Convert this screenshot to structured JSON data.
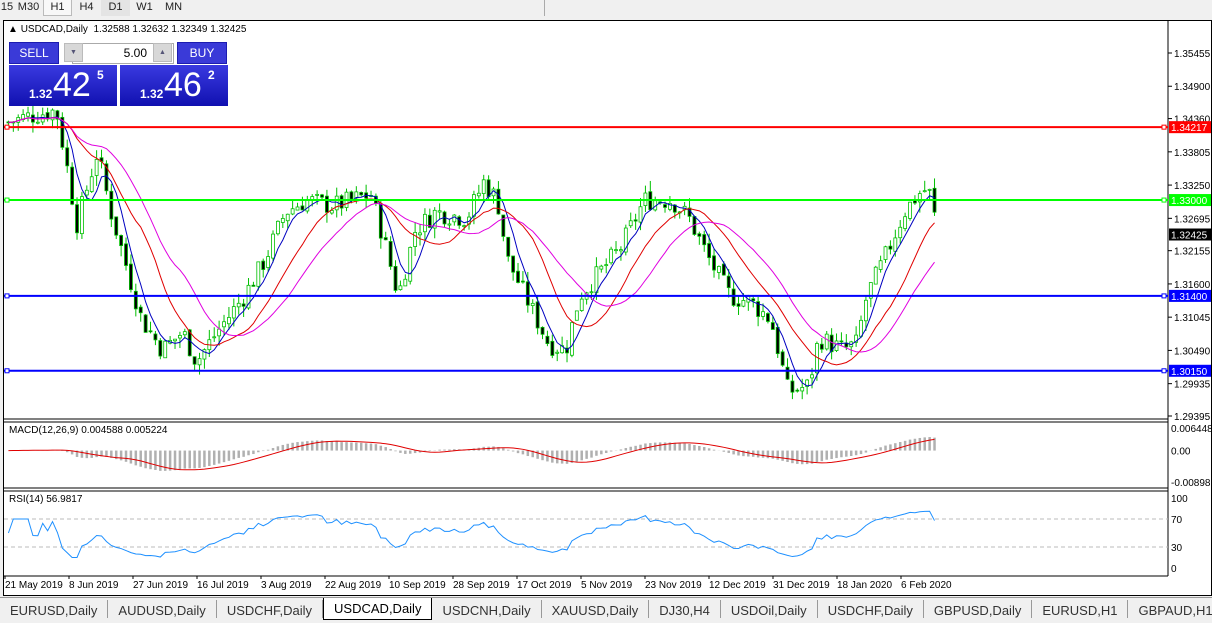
{
  "timeframes": [
    "15",
    "M30",
    "H1",
    "H4",
    "D1",
    "W1",
    "MN"
  ],
  "selected_timeframe": "H1",
  "chart_header": {
    "symbol": "USDCAD,Daily",
    "ohlc": "1.32588 1.32632 1.32349 1.32425"
  },
  "one_click": {
    "sell_label": "SELL",
    "buy_label": "BUY",
    "lot": "5.00",
    "sell": {
      "big": "1.32",
      "main": "42",
      "frac": "5"
    },
    "buy": {
      "big": "1.32",
      "main": "46",
      "frac": "2"
    }
  },
  "chart_data": {
    "type": "candlestick",
    "price_axis_ticks": [
      "1.35455",
      "1.34900",
      "1.34360",
      "1.33805",
      "1.33250",
      "1.32695",
      "1.32155",
      "1.31600",
      "1.31045",
      "1.30490",
      "1.29935",
      "1.29395"
    ],
    "ylim": [
      1.29395,
      1.35455
    ],
    "current_price": "1.32425",
    "hlines": [
      {
        "price": "1.34217",
        "color": "#ff0000"
      },
      {
        "price": "1.33000",
        "color": "#00ff00"
      },
      {
        "price": "1.31400",
        "color": "#0000ff"
      },
      {
        "price": "1.30150",
        "color": "#0000ff"
      }
    ],
    "date_ticks": [
      "21 May 2019",
      "8 Jun 2019",
      "27 Jun 2019",
      "16 Jul 2019",
      "3 Aug 2019",
      "22 Aug 2019",
      "10 Sep 2019",
      "28 Sep 2019",
      "17 Oct 2019",
      "5 Nov 2019",
      "23 Nov 2019",
      "12 Dec 2019",
      "31 Dec 2019",
      "18 Jan 2020",
      "6 Feb 2020"
    ],
    "close_path": [
      [
        "2019-05-22",
        1.343
      ],
      [
        "2019-05-28",
        1.344
      ],
      [
        "2019-06-05",
        1.345
      ],
      [
        "2019-06-08",
        1.336
      ],
      [
        "2019-06-11",
        1.326
      ],
      [
        "2019-06-17",
        1.338
      ],
      [
        "2019-06-21",
        1.328
      ],
      [
        "2019-06-26",
        1.318
      ],
      [
        "2019-06-30",
        1.31
      ],
      [
        "2019-07-06",
        1.305
      ],
      [
        "2019-07-12",
        1.308
      ],
      [
        "2019-07-16",
        1.303
      ],
      [
        "2019-07-22",
        1.308
      ],
      [
        "2019-07-30",
        1.314
      ],
      [
        "2019-08-05",
        1.32
      ],
      [
        "2019-08-11",
        1.328
      ],
      [
        "2019-08-17",
        1.33
      ],
      [
        "2019-08-25",
        1.329
      ],
      [
        "2019-09-05",
        1.331
      ],
      [
        "2019-09-09",
        1.323
      ],
      [
        "2019-09-13",
        1.314
      ],
      [
        "2019-09-18",
        1.325
      ],
      [
        "2019-09-24",
        1.328
      ],
      [
        "2019-10-03",
        1.327
      ],
      [
        "2019-10-08",
        1.333
      ],
      [
        "2019-10-12",
        1.33
      ],
      [
        "2019-10-15",
        1.32
      ],
      [
        "2019-10-21",
        1.313
      ],
      [
        "2019-10-27",
        1.306
      ],
      [
        "2019-11-01",
        1.305
      ],
      [
        "2019-11-05",
        1.314
      ],
      [
        "2019-11-11",
        1.318
      ],
      [
        "2019-11-17",
        1.322
      ],
      [
        "2019-11-24",
        1.33
      ],
      [
        "2019-12-02",
        1.33
      ],
      [
        "2019-12-07",
        1.327
      ],
      [
        "2019-12-13",
        1.32
      ],
      [
        "2019-12-19",
        1.314
      ],
      [
        "2019-12-25",
        1.313
      ],
      [
        "2019-12-31",
        1.31
      ],
      [
        "2020-01-05",
        1.298
      ],
      [
        "2020-01-11",
        1.299
      ],
      [
        "2020-01-14",
        1.307
      ],
      [
        "2020-01-21",
        1.305
      ],
      [
        "2020-01-25",
        1.306
      ],
      [
        "2020-01-28",
        1.314
      ],
      [
        "2020-02-02",
        1.32
      ],
      [
        "2020-02-08",
        1.328
      ],
      [
        "2020-02-12",
        1.331
      ],
      [
        "2020-02-15",
        1.332
      ],
      [
        "2020-02-18",
        1.32425
      ]
    ],
    "colors": {
      "bull": "#00c000",
      "bear": "#00c000",
      "ma_fast": "#0000c0",
      "ma_mid": "#e00000",
      "ma_slow": "#e000e0",
      "macd_hist": "#b0b0b0",
      "macd_signal": "#e00000",
      "rsi": "#1e90ff"
    },
    "macd": {
      "label": "MACD(12,26,9) 0.004588 0.005224",
      "ticks": [
        "0.006448",
        "0.00",
        "-0.008982"
      ]
    },
    "rsi": {
      "label": "RSI(14) 56.9817",
      "ticks": [
        "100",
        "70",
        "30",
        "0"
      ],
      "levels": [
        70,
        30
      ]
    }
  },
  "tabs": [
    "EURUSD,Daily",
    "AUDUSD,Daily",
    "USDCHF,Daily",
    "USDCAD,Daily",
    "USDCNH,Daily",
    "XAUUSD,Daily",
    "DJ30,H4",
    "USDOil,Daily",
    "USDCHF,Daily",
    "GBPUSD,Daily",
    "EURUSD,H1",
    "GBPAUD,H1"
  ],
  "active_tab": "USDCAD,Daily"
}
